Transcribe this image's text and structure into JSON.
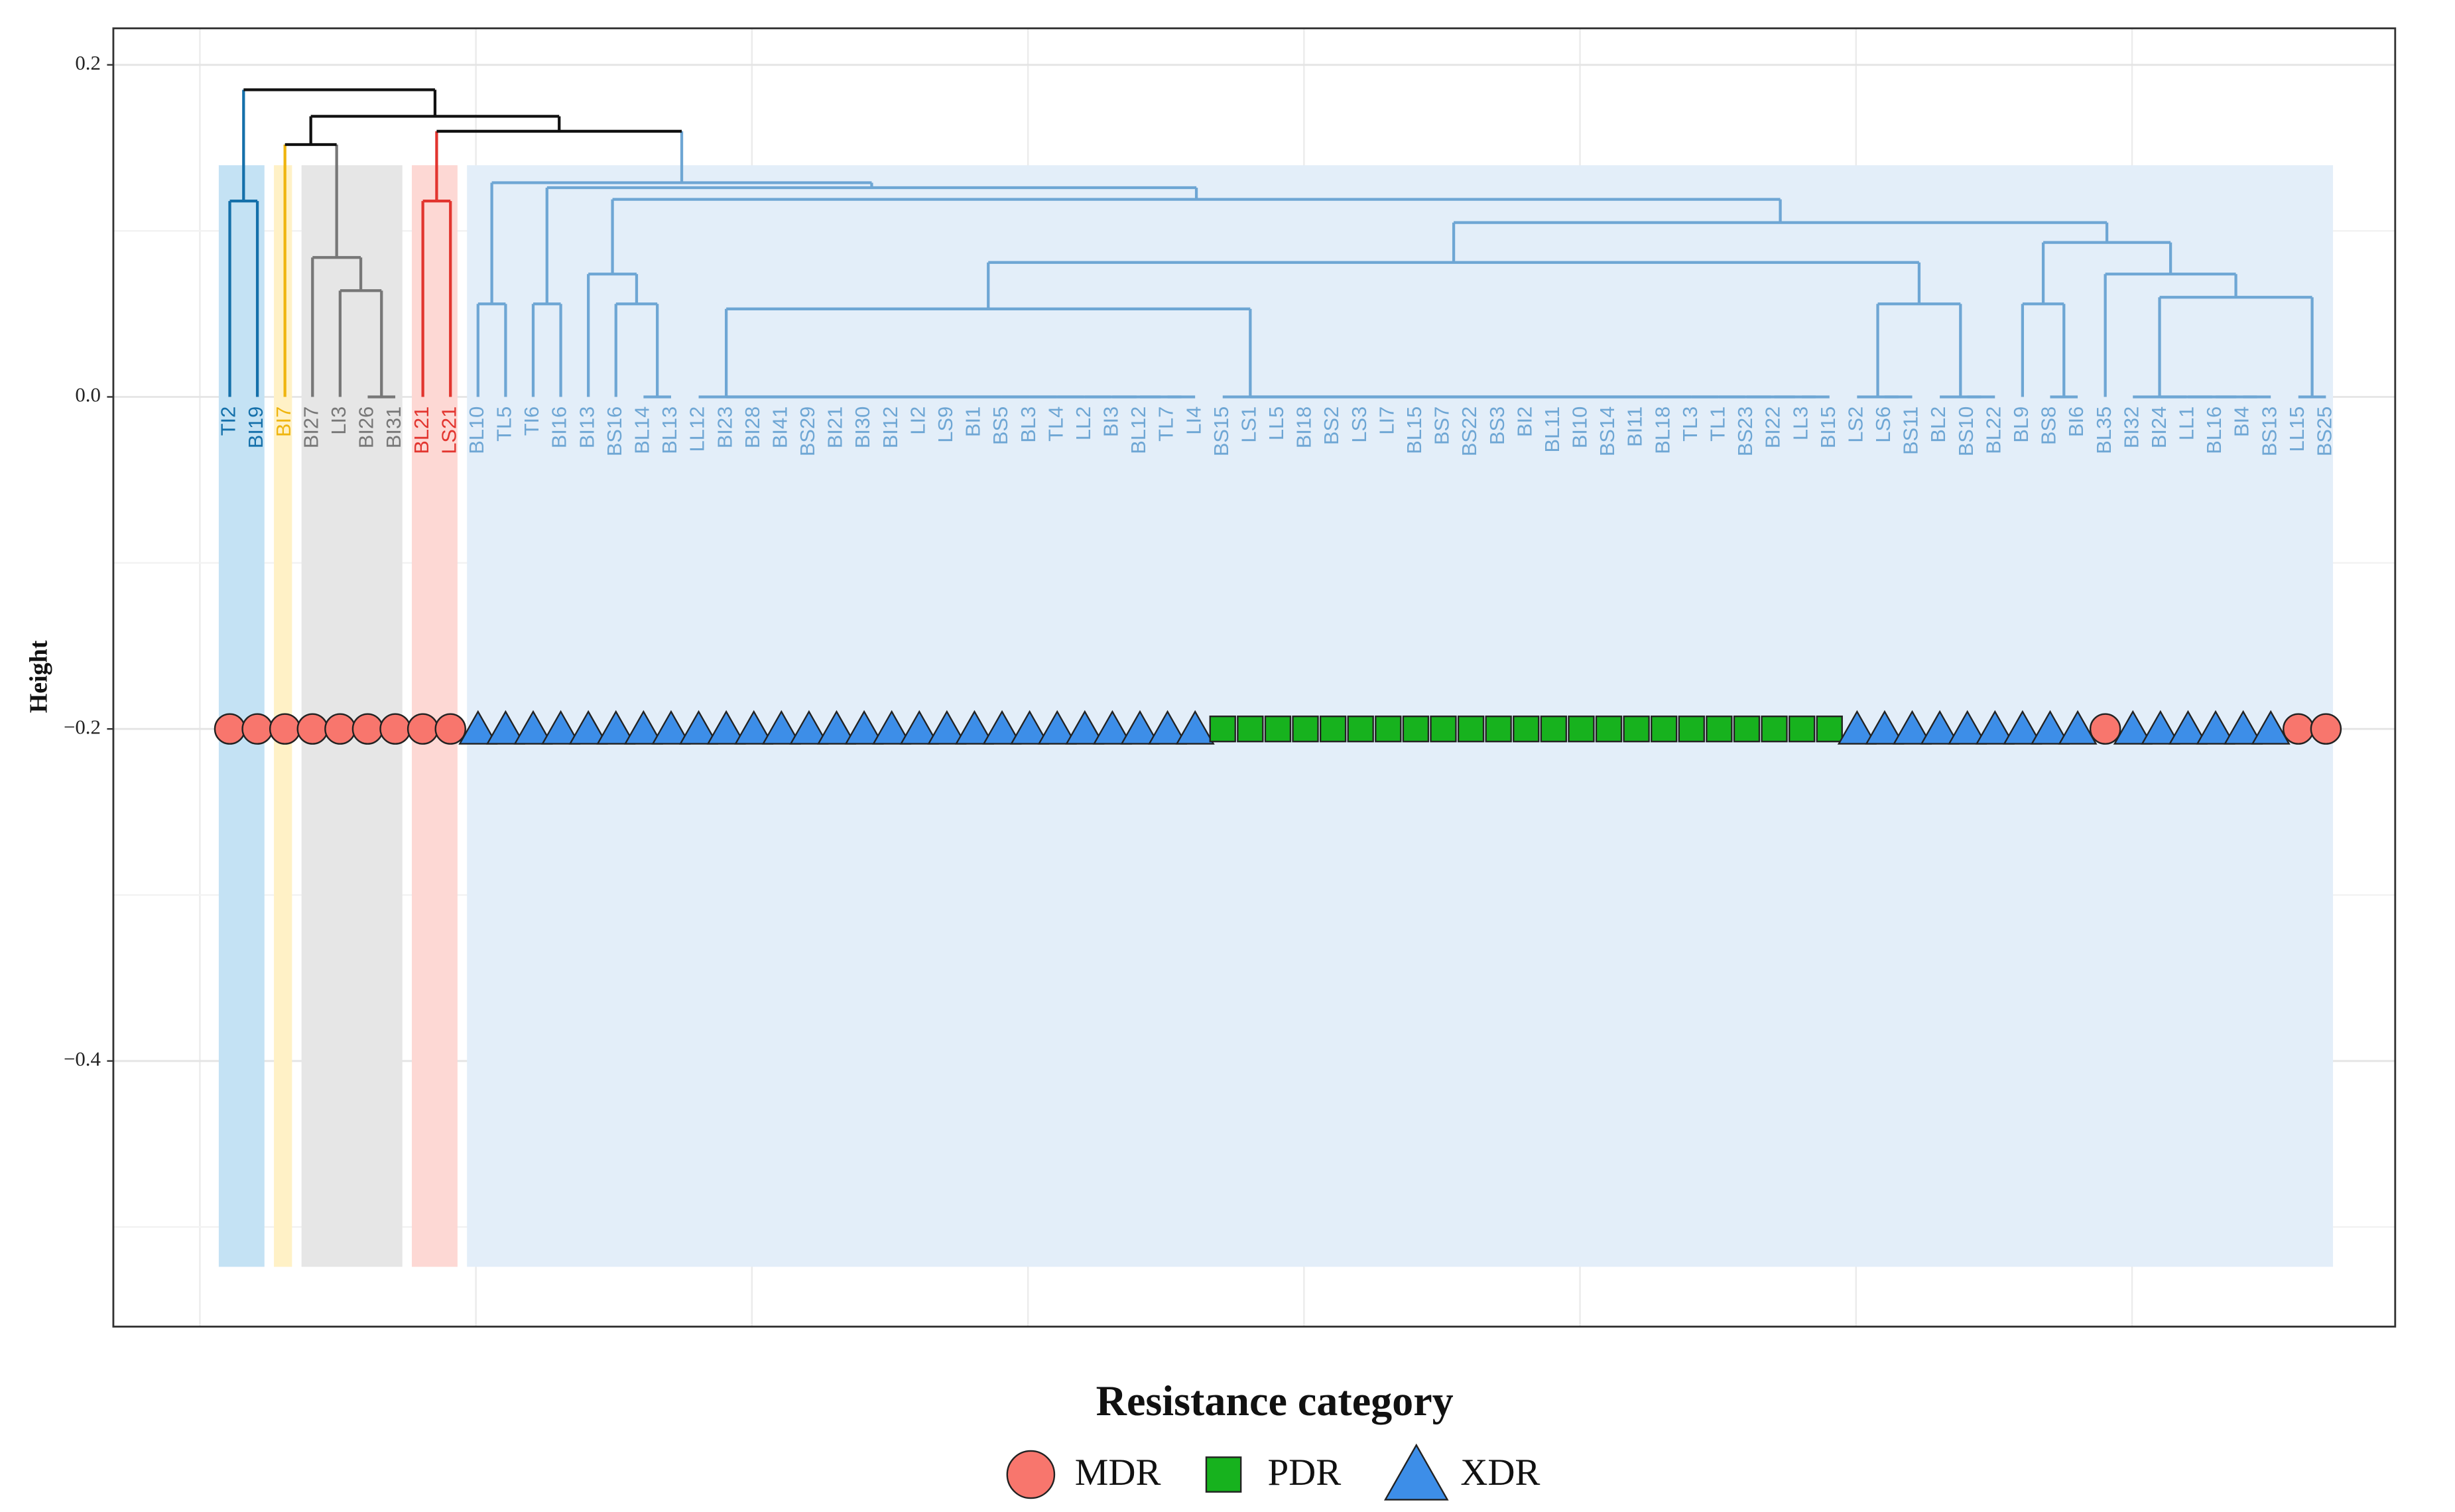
{
  "chart_data": {
    "type": "dendrogram",
    "y_label": "Height",
    "ylim": [
      -0.56,
      0.222
    ],
    "yticks": [
      {
        "value": -0.4,
        "label": "−0.4"
      },
      {
        "value": -0.2,
        "label": "−0.2"
      },
      {
        "value": 0,
        "label": "0.0"
      },
      0.2
    ],
    "grid": true,
    "marker_level": -0.2,
    "clusters": [
      {
        "color": "#1570aa",
        "fill": "#c4e2f4"
      },
      {
        "color": "#efb50f",
        "fill": "#fff1c6"
      },
      {
        "color": "#777777",
        "fill": "#e6e6e6"
      },
      {
        "color": "#e2352f",
        "fill": "#fdd8d4"
      },
      {
        "color": "#6ea6d4",
        "fill": "#e3eef9"
      }
    ],
    "leaves": [
      {
        "label": "TI2",
        "cluster": 0,
        "category": "MDR"
      },
      {
        "label": "BI19",
        "cluster": 0,
        "category": "MDR"
      },
      {
        "label": "BI7",
        "cluster": 1,
        "category": "MDR"
      },
      {
        "label": "BI27",
        "cluster": 2,
        "category": "MDR"
      },
      {
        "label": "LI3",
        "cluster": 2,
        "category": "MDR"
      },
      {
        "label": "BI26",
        "cluster": 2,
        "category": "MDR"
      },
      {
        "label": "BI31",
        "cluster": 2,
        "category": "MDR"
      },
      {
        "label": "BL21",
        "cluster": 3,
        "category": "MDR"
      },
      {
        "label": "LS21",
        "cluster": 3,
        "category": "MDR"
      },
      {
        "label": "BL10",
        "cluster": 4,
        "category": "XDR"
      },
      {
        "label": "TL5",
        "cluster": 4,
        "category": "XDR"
      },
      {
        "label": "TI6",
        "cluster": 4,
        "category": "XDR"
      },
      {
        "label": "BI16",
        "cluster": 4,
        "category": "XDR"
      },
      {
        "label": "BI13",
        "cluster": 4,
        "category": "XDR"
      },
      {
        "label": "BS16",
        "cluster": 4,
        "category": "XDR"
      },
      {
        "label": "BL14",
        "cluster": 4,
        "category": "XDR"
      },
      {
        "label": "BL13",
        "cluster": 4,
        "category": "XDR"
      },
      {
        "label": "LL12",
        "cluster": 4,
        "category": "XDR"
      },
      {
        "label": "BI23",
        "cluster": 4,
        "category": "XDR"
      },
      {
        "label": "BI28",
        "cluster": 4,
        "category": "XDR"
      },
      {
        "label": "BI41",
        "cluster": 4,
        "category": "XDR"
      },
      {
        "label": "BS29",
        "cluster": 4,
        "category": "XDR"
      },
      {
        "label": "BI21",
        "cluster": 4,
        "category": "XDR"
      },
      {
        "label": "BI30",
        "cluster": 4,
        "category": "XDR"
      },
      {
        "label": "BI12",
        "cluster": 4,
        "category": "XDR"
      },
      {
        "label": "LI2",
        "cluster": 4,
        "category": "XDR"
      },
      {
        "label": "LS9",
        "cluster": 4,
        "category": "XDR"
      },
      {
        "label": "BI1",
        "cluster": 4,
        "category": "XDR"
      },
      {
        "label": "BS5",
        "cluster": 4,
        "category": "XDR"
      },
      {
        "label": "BL3",
        "cluster": 4,
        "category": "XDR"
      },
      {
        "label": "TL4",
        "cluster": 4,
        "category": "XDR"
      },
      {
        "label": "LL2",
        "cluster": 4,
        "category": "XDR"
      },
      {
        "label": "BI3",
        "cluster": 4,
        "category": "XDR"
      },
      {
        "label": "BL12",
        "cluster": 4,
        "category": "XDR"
      },
      {
        "label": "TL7",
        "cluster": 4,
        "category": "XDR"
      },
      {
        "label": "LI4",
        "cluster": 4,
        "category": "XDR"
      },
      {
        "label": "BS15",
        "cluster": 4,
        "category": "PDR"
      },
      {
        "label": "LS1",
        "cluster": 4,
        "category": "PDR"
      },
      {
        "label": "LL5",
        "cluster": 4,
        "category": "PDR"
      },
      {
        "label": "BI18",
        "cluster": 4,
        "category": "PDR"
      },
      {
        "label": "BS2",
        "cluster": 4,
        "category": "PDR"
      },
      {
        "label": "LS3",
        "cluster": 4,
        "category": "PDR"
      },
      {
        "label": "LI7",
        "cluster": 4,
        "category": "PDR"
      },
      {
        "label": "BL15",
        "cluster": 4,
        "category": "PDR"
      },
      {
        "label": "BS7",
        "cluster": 4,
        "category": "PDR"
      },
      {
        "label": "BS22",
        "cluster": 4,
        "category": "PDR"
      },
      {
        "label": "BS3",
        "cluster": 4,
        "category": "PDR"
      },
      {
        "label": "BI2",
        "cluster": 4,
        "category": "PDR"
      },
      {
        "label": "BL11",
        "cluster": 4,
        "category": "PDR"
      },
      {
        "label": "BI10",
        "cluster": 4,
        "category": "PDR"
      },
      {
        "label": "BS14",
        "cluster": 4,
        "category": "PDR"
      },
      {
        "label": "BI11",
        "cluster": 4,
        "category": "PDR"
      },
      {
        "label": "BL18",
        "cluster": 4,
        "category": "PDR"
      },
      {
        "label": "TL3",
        "cluster": 4,
        "category": "PDR"
      },
      {
        "label": "TL1",
        "cluster": 4,
        "category": "PDR"
      },
      {
        "label": "BS23",
        "cluster": 4,
        "category": "PDR"
      },
      {
        "label": "BI22",
        "cluster": 4,
        "category": "PDR"
      },
      {
        "label": "LL3",
        "cluster": 4,
        "category": "PDR"
      },
      {
        "label": "BI15",
        "cluster": 4,
        "category": "PDR"
      },
      {
        "label": "LS2",
        "cluster": 4,
        "category": "XDR"
      },
      {
        "label": "LS6",
        "cluster": 4,
        "category": "XDR"
      },
      {
        "label": "BS11",
        "cluster": 4,
        "category": "XDR"
      },
      {
        "label": "BL2",
        "cluster": 4,
        "category": "XDR"
      },
      {
        "label": "BS10",
        "cluster": 4,
        "category": "XDR"
      },
      {
        "label": "BL22",
        "cluster": 4,
        "category": "XDR"
      },
      {
        "label": "BL9",
        "cluster": 4,
        "category": "XDR"
      },
      {
        "label": "BS8",
        "cluster": 4,
        "category": "XDR"
      },
      {
        "label": "BI6",
        "cluster": 4,
        "category": "XDR"
      },
      {
        "label": "BL35",
        "cluster": 4,
        "category": "MDR"
      },
      {
        "label": "BI32",
        "cluster": 4,
        "category": "XDR"
      },
      {
        "label": "BI24",
        "cluster": 4,
        "category": "XDR"
      },
      {
        "label": "LL1",
        "cluster": 4,
        "category": "XDR"
      },
      {
        "label": "BL16",
        "cluster": 4,
        "category": "XDR"
      },
      {
        "label": "BI4",
        "cluster": 4,
        "category": "XDR"
      },
      {
        "label": "BS13",
        "cluster": 4,
        "category": "XDR"
      },
      {
        "label": "LL15",
        "cluster": 4,
        "category": "MDR"
      },
      {
        "label": "BS25",
        "cluster": 4,
        "category": "MDR"
      }
    ],
    "merges": [
      {
        "children": [
          -6,
          -7
        ],
        "height": 0
      },
      {
        "children": [
          -5,
          1
        ],
        "height": 0.064
      },
      {
        "children": [
          -4,
          2
        ],
        "height": 0.084
      },
      {
        "children": [
          -3,
          3
        ],
        "height": 0.152
      },
      {
        "children": [
          -1,
          -2
        ],
        "height": 0.118
      },
      {
        "children": [
          -8,
          -9
        ],
        "height": 0.118
      },
      {
        "children": [
          -10,
          -11
        ],
        "height": 0.056
      },
      {
        "children": [
          -12,
          -13
        ],
        "height": 0.056
      },
      {
        "children": [
          -16,
          -17
        ],
        "height": 0
      },
      {
        "children": [
          -15,
          9
        ],
        "height": 0.056
      },
      {
        "children": [
          -14,
          10
        ],
        "height": 0.074
      },
      {
        "children": [
          -18,
          -19,
          -20,
          -21,
          -22,
          -23,
          -24,
          -25,
          -26,
          -27,
          -28,
          -29,
          -30,
          -31,
          -32,
          -33,
          -34,
          -35,
          -36
        ],
        "height": 0
      },
      {
        "children": [
          -37,
          -38,
          -39,
          -40,
          -41,
          -42,
          -43,
          -44,
          -45,
          -46,
          -47,
          -48,
          -49,
          -50,
          -51,
          -52,
          -53,
          -54,
          -55,
          -56,
          -57,
          -58,
          -59
        ],
        "height": 0
      },
      {
        "children": [
          12,
          13
        ],
        "height": 0.053
      },
      {
        "children": [
          -60,
          -61,
          -62
        ],
        "height": 0
      },
      {
        "children": [
          -63,
          -64,
          -65
        ],
        "height": 0
      },
      {
        "children": [
          15,
          16
        ],
        "height": 0.056
      },
      {
        "children": [
          14,
          17
        ],
        "height": 0.081
      },
      {
        "children": [
          -67,
          -68
        ],
        "height": 0
      },
      {
        "children": [
          -66,
          19
        ],
        "height": 0.056
      },
      {
        "children": [
          -70,
          -71,
          -72,
          -73,
          -74,
          -75
        ],
        "height": 0
      },
      {
        "children": [
          -76,
          -77
        ],
        "height": 0
      },
      {
        "children": [
          21,
          22
        ],
        "height": 0.06
      },
      {
        "children": [
          -69,
          23
        ],
        "height": 0.074
      },
      {
        "children": [
          20,
          24
        ],
        "height": 0.093
      },
      {
        "children": [
          18,
          25
        ],
        "height": 0.105
      },
      {
        "children": [
          11,
          26
        ],
        "height": 0.119
      },
      {
        "children": [
          8,
          27
        ],
        "height": 0.126
      },
      {
        "children": [
          7,
          28
        ],
        "height": 0.129
      },
      {
        "children": [
          6,
          29
        ],
        "height": 0.16
      },
      {
        "children": [
          4,
          30
        ],
        "height": 0.169
      },
      {
        "children": [
          5,
          31
        ],
        "height": 0.185
      }
    ],
    "legend": {
      "title": "Resistance category",
      "position": "bottom",
      "items": [
        {
          "name": "MDR",
          "shape": "circle",
          "color": "#f8766d"
        },
        {
          "name": "PDR",
          "shape": "square",
          "color": "#17b21e"
        },
        {
          "name": "XDR",
          "shape": "triangle",
          "color": "#3d8ee8"
        }
      ]
    }
  }
}
